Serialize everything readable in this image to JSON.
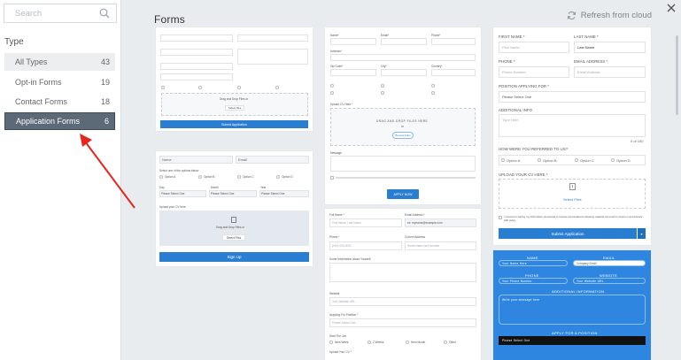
{
  "sidebar": {
    "search_placeholder": "Search",
    "type_heading": "Type",
    "categories": [
      {
        "label": "All Types",
        "count": "43"
      },
      {
        "label": "Opt-in Forms",
        "count": "19"
      },
      {
        "label": "Contact Forms",
        "count": "18"
      },
      {
        "label": "Application Forms",
        "count": "6"
      }
    ]
  },
  "header": {
    "title": "Forms",
    "refresh_label": "Refresh from cloud"
  },
  "card1": {
    "submit_label": "Submit Application",
    "upload_btn": "Select files",
    "drag_text": "Drag and Drop Files or"
  },
  "card2": {
    "name_ph": "Name",
    "email_ph": "Email",
    "select_one": "Select one of the options below",
    "options": [
      "Option A",
      "Option B",
      "Option C",
      "Option D"
    ],
    "day": "Day",
    "month": "Month",
    "year": "Year",
    "please_select": "Please Select One",
    "upload_cv": "Upload your CV here",
    "drag_text": "Drag and Drop Files or",
    "select_files": "Select Files",
    "sign_up": "Sign Up"
  },
  "card3": {
    "name": "Name*",
    "email": "Email*",
    "phone": "Phone*",
    "address": "Address*",
    "zip": "Zip Code*",
    "city": "City*",
    "country": "Country*",
    "resume": "Upload CV Here *",
    "drop_text": "DRAG AND DROP FILES HERE",
    "or": "or",
    "browse": "Browse Files",
    "message": "Message",
    "apply": "APPLY NOW"
  },
  "card4": {
    "full_name": "Full Name *",
    "email_address": "Email Address *",
    "first_last": "First Name, Last Name",
    "email_value": "ex: myname@example.com",
    "phone": "Phone *",
    "current_address": "Current Address",
    "phone_ph": "(000) 000-0000",
    "street_ph": "Street Name and Number",
    "about": "Some Information About Yourself",
    "website": "Website",
    "website_ph": "Your Website URL",
    "applying_for": "Applying For Position *",
    "please_select": "Please Select One",
    "start": "Start The Job",
    "start_options": [
      "Next Week",
      "2 Weeks",
      "Next Month",
      "Other"
    ],
    "upload_cv": "Upload Your CV *"
  },
  "card5": {
    "first_name": "FIRST NAME *",
    "last_name": "LAST NAME *",
    "first_ph": "First Name",
    "last_ph": "Last Name",
    "phone": "PHONE *",
    "email": "EMAIL ADDRESS *",
    "phone_ph": "Phone Number",
    "email_ph": "Email Address",
    "position": "POSITION APPLYING FOR *",
    "please_select": "Please Select One",
    "additional": "ADDITIONAL INFO",
    "type_here": "Type Here",
    "char_count": "0 of 150",
    "referred": "HOW WERE YOU REFERRED TO US?",
    "options": [
      "Option A",
      "Option B",
      "Option C",
      "Option D"
    ],
    "upload": "UPLOAD YOUR CV HERE *",
    "select_files": "Select Files",
    "consent": "I consent to having my information processed to receive personalized marketing material via email or phone in accordance with policy",
    "submit": "Submit Application"
  },
  "card6": {
    "name": "NAME",
    "email": "EMAIL",
    "name_ph": "Your Name Here",
    "company_ph": "Company Email",
    "phone": "PHONE",
    "website": "WEBSITE",
    "phone_ph": "Your Phone Number",
    "website_ph": "Your Website URL",
    "info": "ADDITIONAL INFORMATION",
    "message_ph": "Write your message here",
    "position": "APPLY FOR A POSITION",
    "select": "Please Select One"
  },
  "colors": {
    "accent": "#2a7ed2",
    "active_item": "#5c6a78",
    "arrow": "#e5261c",
    "blue_card": "#2e86e0"
  },
  "icons": [
    "search-icon",
    "refresh-icon",
    "close-icon",
    "upload-icon"
  ]
}
